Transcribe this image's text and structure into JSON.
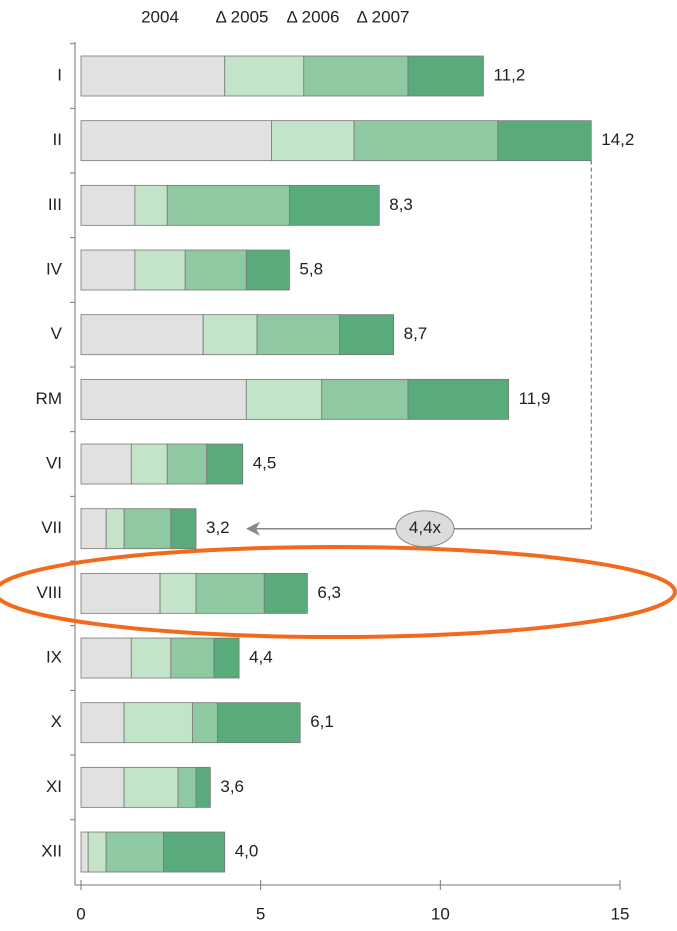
{
  "chart_data": {
    "type": "stacked-bar-horizontal",
    "categories": [
      "I",
      "II",
      "III",
      "IV",
      "V",
      "RM",
      "VI",
      "VII",
      "VIII",
      "IX",
      "X",
      "XI",
      "XII"
    ],
    "series": [
      {
        "name": "2004",
        "color": "#e1e1e1",
        "values": [
          4.0,
          5.3,
          1.5,
          1.5,
          3.4,
          4.6,
          1.4,
          0.7,
          2.2,
          1.4,
          1.2,
          1.2,
          0.2
        ]
      },
      {
        "name": "Δ 2005",
        "color": "#c3e4c9",
        "values": [
          2.2,
          2.3,
          0.9,
          1.4,
          1.5,
          2.1,
          1.0,
          0.5,
          1.0,
          1.1,
          1.9,
          1.5,
          0.5
        ]
      },
      {
        "name": "Δ 2006",
        "color": "#8fc9a1",
        "values": [
          2.9,
          4.0,
          3.4,
          1.7,
          2.3,
          2.4,
          1.1,
          1.3,
          1.9,
          1.2,
          0.7,
          0.5,
          1.6
        ]
      },
      {
        "name": "Δ 2007",
        "color": "#5aab7c",
        "values": [
          2.1,
          2.6,
          2.5,
          1.2,
          1.5,
          2.8,
          1.0,
          0.7,
          1.2,
          0.7,
          2.3,
          0.4,
          1.7
        ]
      }
    ],
    "totals": {
      "values": [
        11.2,
        14.2,
        8.3,
        5.8,
        8.7,
        11.9,
        4.5,
        3.2,
        6.3,
        4.4,
        6.1,
        3.6,
        4.0
      ],
      "value_labels": [
        "11,2",
        "14,2",
        "8,3",
        "5,8",
        "8,7",
        "11,9",
        "4,5",
        "3,2",
        "6,3",
        "4,4",
        "6,1",
        "3,6",
        "4,0"
      ]
    },
    "annotation": "4,4x",
    "xlim": [
      0,
      15
    ],
    "xticks": [
      0,
      5,
      10,
      15
    ]
  }
}
